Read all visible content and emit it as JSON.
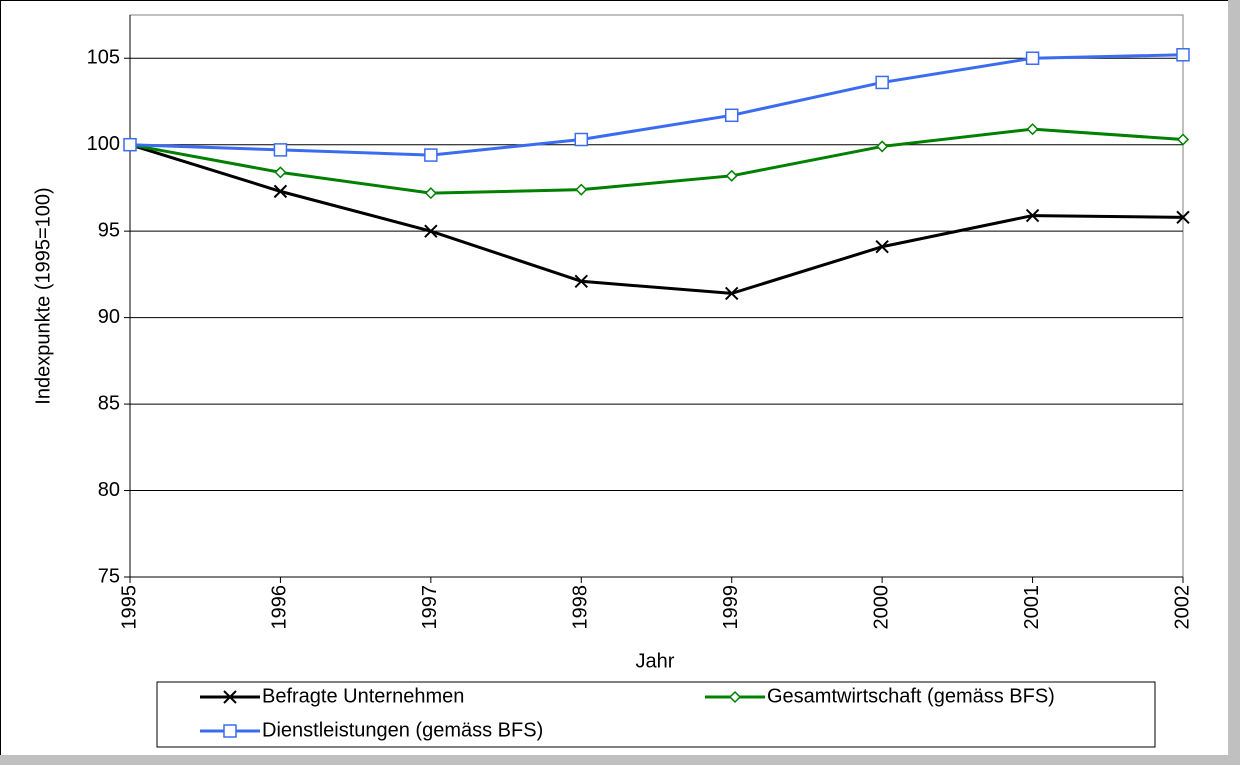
{
  "chart_data": {
    "type": "line",
    "x_label": "Jahr",
    "y_label": "Indexpunkte (1995=100)",
    "x": [
      1995,
      1996,
      1997,
      1998,
      1999,
      2000,
      2001,
      2002
    ],
    "xlim": [
      1995,
      2002
    ],
    "xticks": [
      1995,
      1996,
      1997,
      1998,
      1999,
      2000,
      2001,
      2002
    ],
    "ylim": [
      75,
      107.5
    ],
    "yticks": [
      75,
      80,
      85,
      90,
      95,
      100,
      105
    ],
    "grid": true,
    "series": [
      {
        "name": "Befragte Unternehmen",
        "color": "#000000",
        "marker": "x",
        "values": [
          100,
          97.3,
          95,
          92.1,
          91.4,
          94.1,
          95.9,
          95.8
        ]
      },
      {
        "name": "Gesamtwirtschaft (gemäss BFS)",
        "color": "#008000",
        "marker": "diamond",
        "values": [
          100,
          98.4,
          97.2,
          97.4,
          98.2,
          99.9,
          100.9,
          100.3
        ]
      },
      {
        "name": "Dienstleistungen (gemäss BFS)",
        "color": "#3b6cf0",
        "marker": "square",
        "values": [
          100,
          99.7,
          99.4,
          100.3,
          101.7,
          103.6,
          105,
          105.2
        ]
      }
    ]
  }
}
